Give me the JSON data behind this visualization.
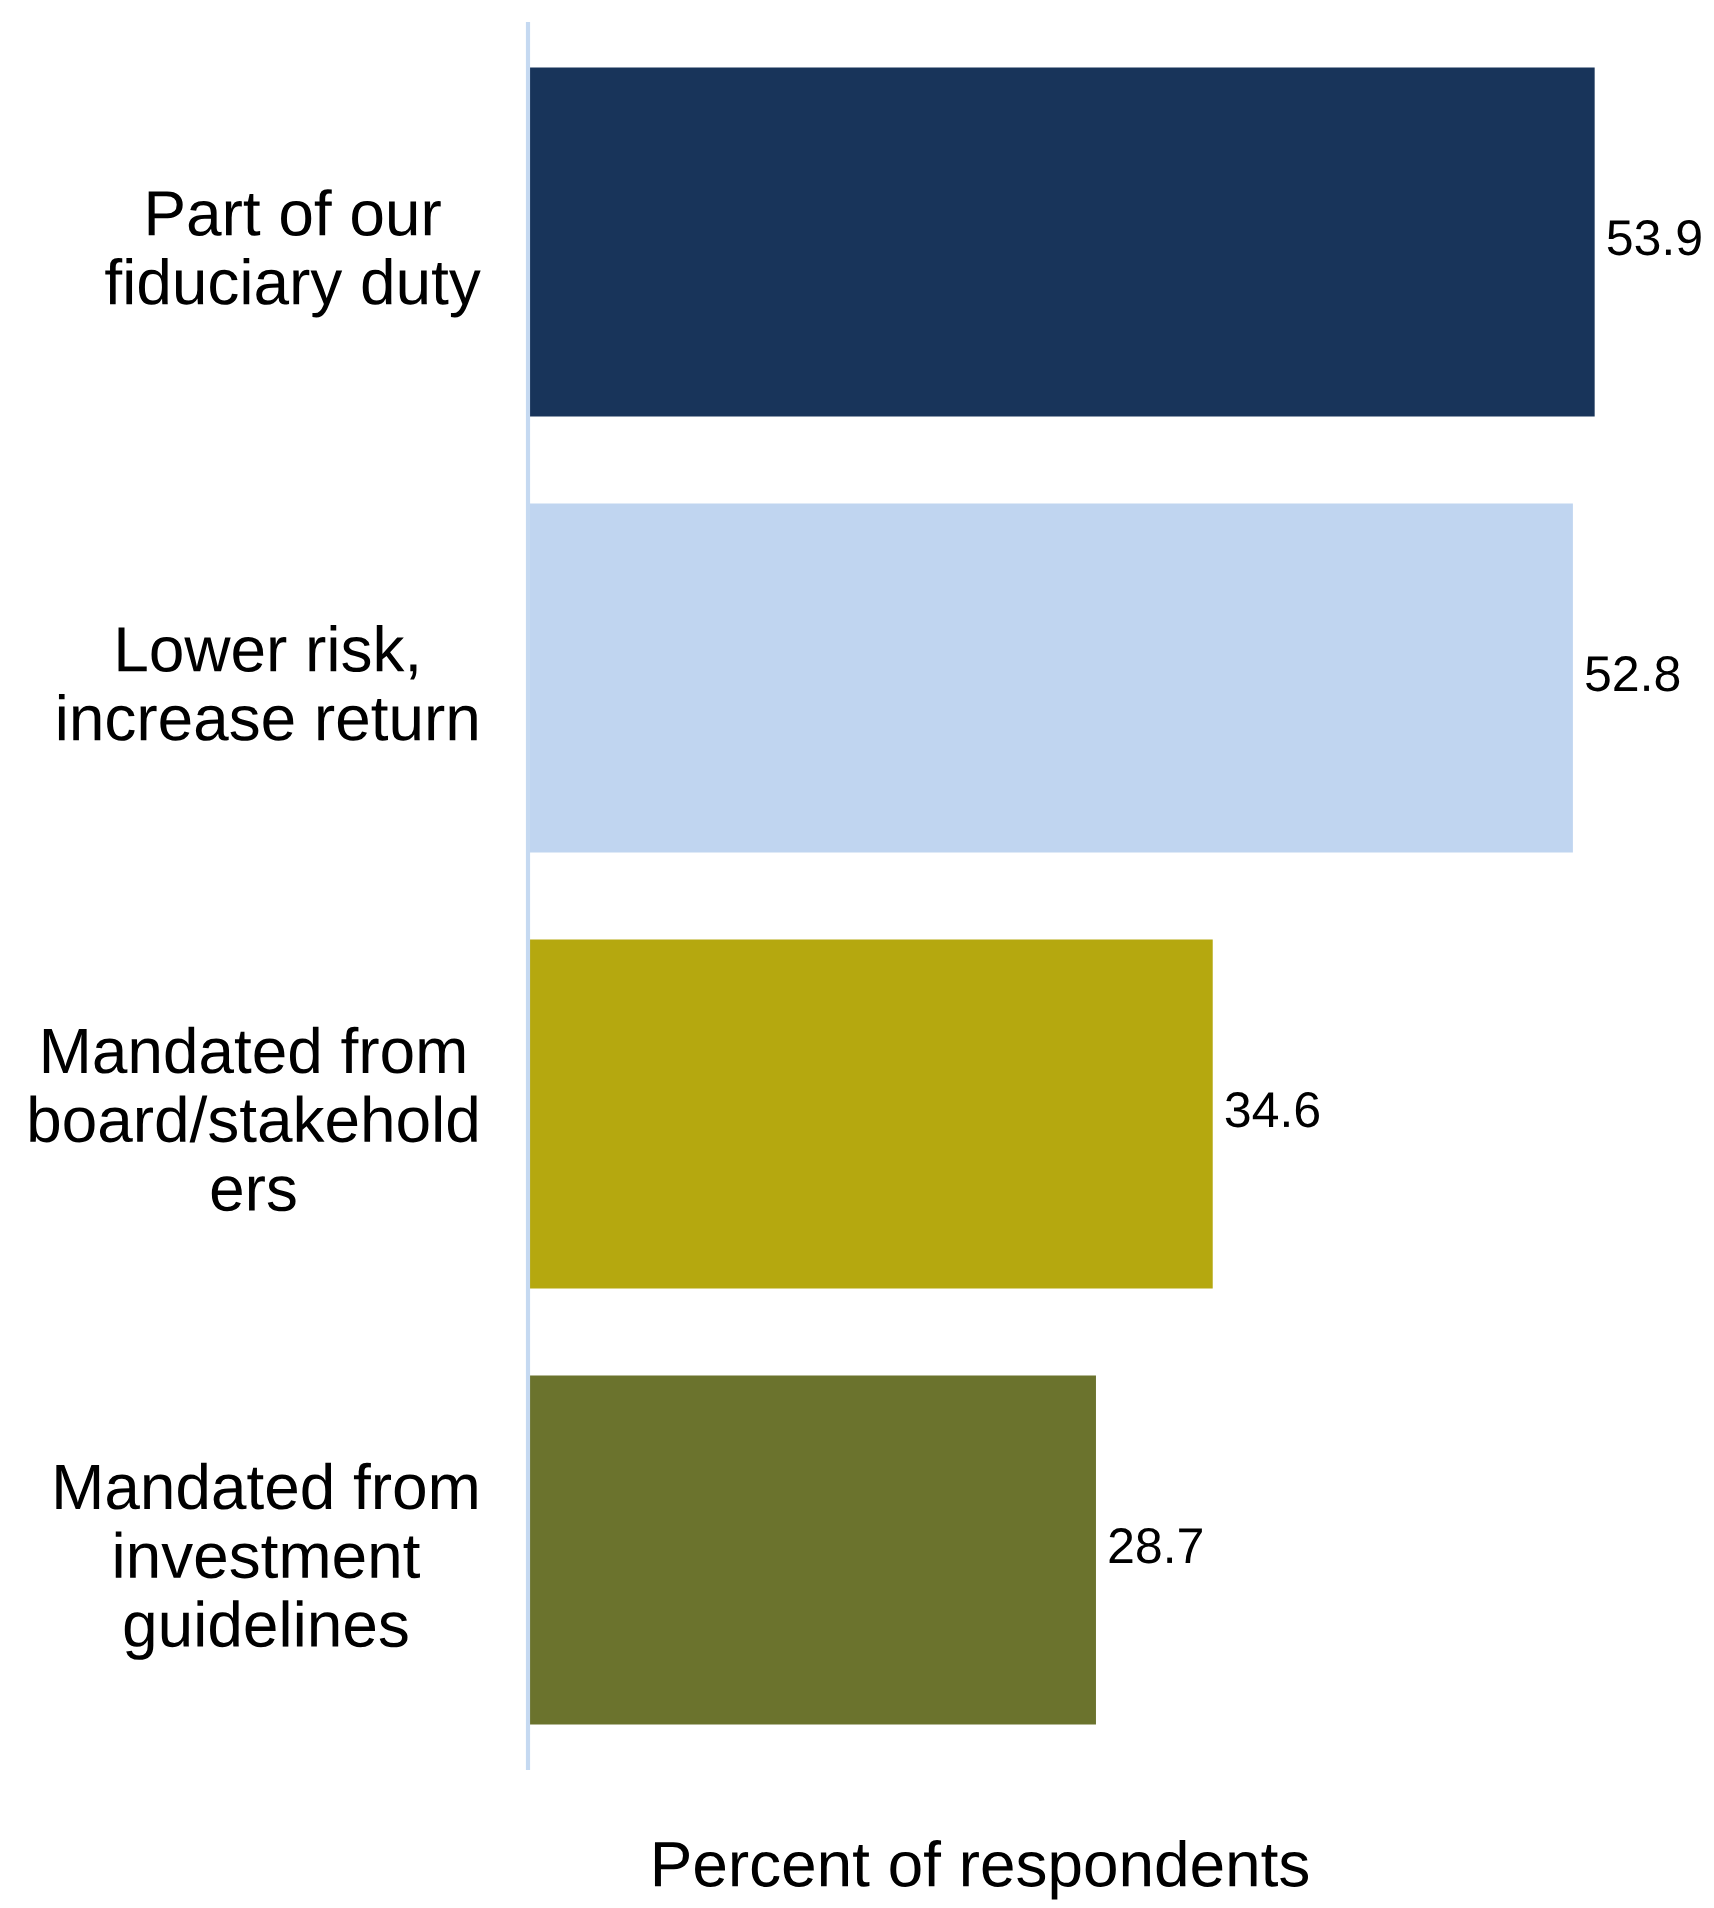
{
  "chart_data": {
    "type": "bar",
    "orientation": "horizontal",
    "xlabel": "Percent of respondents",
    "categories": [
      "Part of our\nfiduciary duty",
      "Lower risk,\nincrease return",
      "Mandated from\nboard/stakehold\ners",
      "Mandated from\ninvestment\nguidelines"
    ],
    "values": [
      53.9,
      52.8,
      34.6,
      28.7
    ],
    "colors": [
      "#18345a",
      "#c0d5f0",
      "#b5a80f",
      "#6b732d"
    ],
    "tick_labels": "y",
    "data_labels": true,
    "grid": false,
    "legend": false
  }
}
